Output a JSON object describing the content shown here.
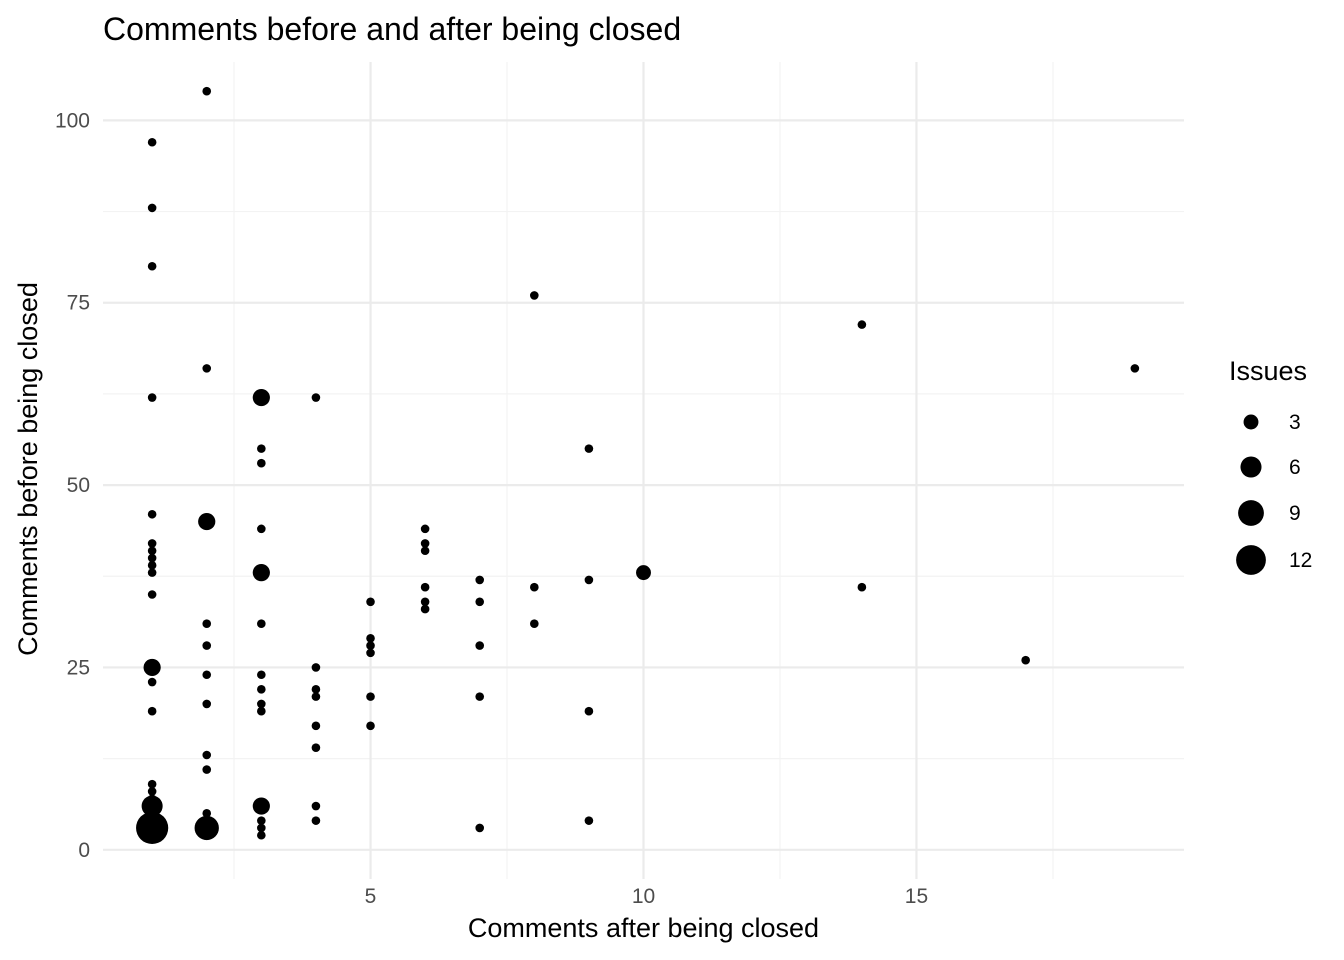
{
  "chart_data": {
    "type": "scatter",
    "title": "Comments before and after being closed",
    "xlabel": "Comments after being closed",
    "ylabel": "Comments before being closed",
    "xlim": [
      0.1,
      19.9
    ],
    "ylim": [
      -4,
      108
    ],
    "x_ticks": [
      5,
      10,
      15
    ],
    "y_ticks": [
      0,
      25,
      50,
      75,
      100
    ],
    "x_minor": [
      2.5,
      7.5,
      12.5,
      17.5
    ],
    "y_minor": [
      12.5,
      37.5,
      62.5,
      87.5
    ],
    "grid": true,
    "size_legend": {
      "title": "Issues",
      "position": "right",
      "entries": [
        3,
        6,
        9,
        12
      ]
    },
    "points": [
      {
        "x": 1,
        "y": 97,
        "n": 1
      },
      {
        "x": 1,
        "y": 88,
        "n": 1
      },
      {
        "x": 1,
        "y": 80,
        "n": 1
      },
      {
        "x": 1,
        "y": 62,
        "n": 1
      },
      {
        "x": 1,
        "y": 46,
        "n": 1
      },
      {
        "x": 1,
        "y": 42,
        "n": 1
      },
      {
        "x": 1,
        "y": 41,
        "n": 1
      },
      {
        "x": 1,
        "y": 40,
        "n": 1
      },
      {
        "x": 1,
        "y": 39,
        "n": 1
      },
      {
        "x": 1,
        "y": 38,
        "n": 1
      },
      {
        "x": 1,
        "y": 35,
        "n": 1
      },
      {
        "x": 1,
        "y": 25,
        "n": 4
      },
      {
        "x": 1,
        "y": 23,
        "n": 1
      },
      {
        "x": 1,
        "y": 19,
        "n": 1
      },
      {
        "x": 1,
        "y": 9,
        "n": 1
      },
      {
        "x": 1,
        "y": 8,
        "n": 1
      },
      {
        "x": 1,
        "y": 7,
        "n": 1
      },
      {
        "x": 1,
        "y": 6,
        "n": 6
      },
      {
        "x": 1,
        "y": 3,
        "n": 14
      },
      {
        "x": 2,
        "y": 104,
        "n": 1
      },
      {
        "x": 2,
        "y": 66,
        "n": 1
      },
      {
        "x": 2,
        "y": 45,
        "n": 4
      },
      {
        "x": 2,
        "y": 31,
        "n": 1
      },
      {
        "x": 2,
        "y": 28,
        "n": 1
      },
      {
        "x": 2,
        "y": 24,
        "n": 1
      },
      {
        "x": 2,
        "y": 20,
        "n": 1
      },
      {
        "x": 2,
        "y": 13,
        "n": 1
      },
      {
        "x": 2,
        "y": 11,
        "n": 1
      },
      {
        "x": 2,
        "y": 5,
        "n": 1
      },
      {
        "x": 2,
        "y": 3,
        "n": 8
      },
      {
        "x": 3,
        "y": 62,
        "n": 4
      },
      {
        "x": 3,
        "y": 55,
        "n": 1
      },
      {
        "x": 3,
        "y": 53,
        "n": 1
      },
      {
        "x": 3,
        "y": 44,
        "n": 1
      },
      {
        "x": 3,
        "y": 38,
        "n": 4
      },
      {
        "x": 3,
        "y": 31,
        "n": 1
      },
      {
        "x": 3,
        "y": 24,
        "n": 1
      },
      {
        "x": 3,
        "y": 22,
        "n": 1
      },
      {
        "x": 3,
        "y": 20,
        "n": 1
      },
      {
        "x": 3,
        "y": 19,
        "n": 1
      },
      {
        "x": 3,
        "y": 6,
        "n": 4
      },
      {
        "x": 3,
        "y": 4,
        "n": 1
      },
      {
        "x": 3,
        "y": 3,
        "n": 1
      },
      {
        "x": 3,
        "y": 2,
        "n": 1
      },
      {
        "x": 4,
        "y": 62,
        "n": 1
      },
      {
        "x": 4,
        "y": 25,
        "n": 1
      },
      {
        "x": 4,
        "y": 22,
        "n": 1
      },
      {
        "x": 4,
        "y": 21,
        "n": 1
      },
      {
        "x": 4,
        "y": 17,
        "n": 1
      },
      {
        "x": 4,
        "y": 14,
        "n": 1
      },
      {
        "x": 4,
        "y": 6,
        "n": 1
      },
      {
        "x": 4,
        "y": 4,
        "n": 1
      },
      {
        "x": 5,
        "y": 34,
        "n": 1
      },
      {
        "x": 5,
        "y": 29,
        "n": 1
      },
      {
        "x": 5,
        "y": 28,
        "n": 1
      },
      {
        "x": 5,
        "y": 27,
        "n": 1
      },
      {
        "x": 5,
        "y": 21,
        "n": 1
      },
      {
        "x": 5,
        "y": 17,
        "n": 1
      },
      {
        "x": 6,
        "y": 44,
        "n": 1
      },
      {
        "x": 6,
        "y": 42,
        "n": 1
      },
      {
        "x": 6,
        "y": 41,
        "n": 1
      },
      {
        "x": 6,
        "y": 36,
        "n": 1
      },
      {
        "x": 6,
        "y": 34,
        "n": 1
      },
      {
        "x": 6,
        "y": 33,
        "n": 1
      },
      {
        "x": 7,
        "y": 37,
        "n": 1
      },
      {
        "x": 7,
        "y": 34,
        "n": 1
      },
      {
        "x": 7,
        "y": 28,
        "n": 1
      },
      {
        "x": 7,
        "y": 21,
        "n": 1
      },
      {
        "x": 7,
        "y": 3,
        "n": 1
      },
      {
        "x": 8,
        "y": 76,
        "n": 1
      },
      {
        "x": 8,
        "y": 36,
        "n": 1
      },
      {
        "x": 8,
        "y": 31,
        "n": 1
      },
      {
        "x": 9,
        "y": 55,
        "n": 1
      },
      {
        "x": 9,
        "y": 37,
        "n": 1
      },
      {
        "x": 9,
        "y": 19,
        "n": 1
      },
      {
        "x": 9,
        "y": 4,
        "n": 1
      },
      {
        "x": 10,
        "y": 38,
        "n": 3
      },
      {
        "x": 14,
        "y": 72,
        "n": 1
      },
      {
        "x": 14,
        "y": 36,
        "n": 1
      },
      {
        "x": 17,
        "y": 26,
        "n": 1
      },
      {
        "x": 19,
        "y": 66,
        "n": 1
      }
    ]
  }
}
